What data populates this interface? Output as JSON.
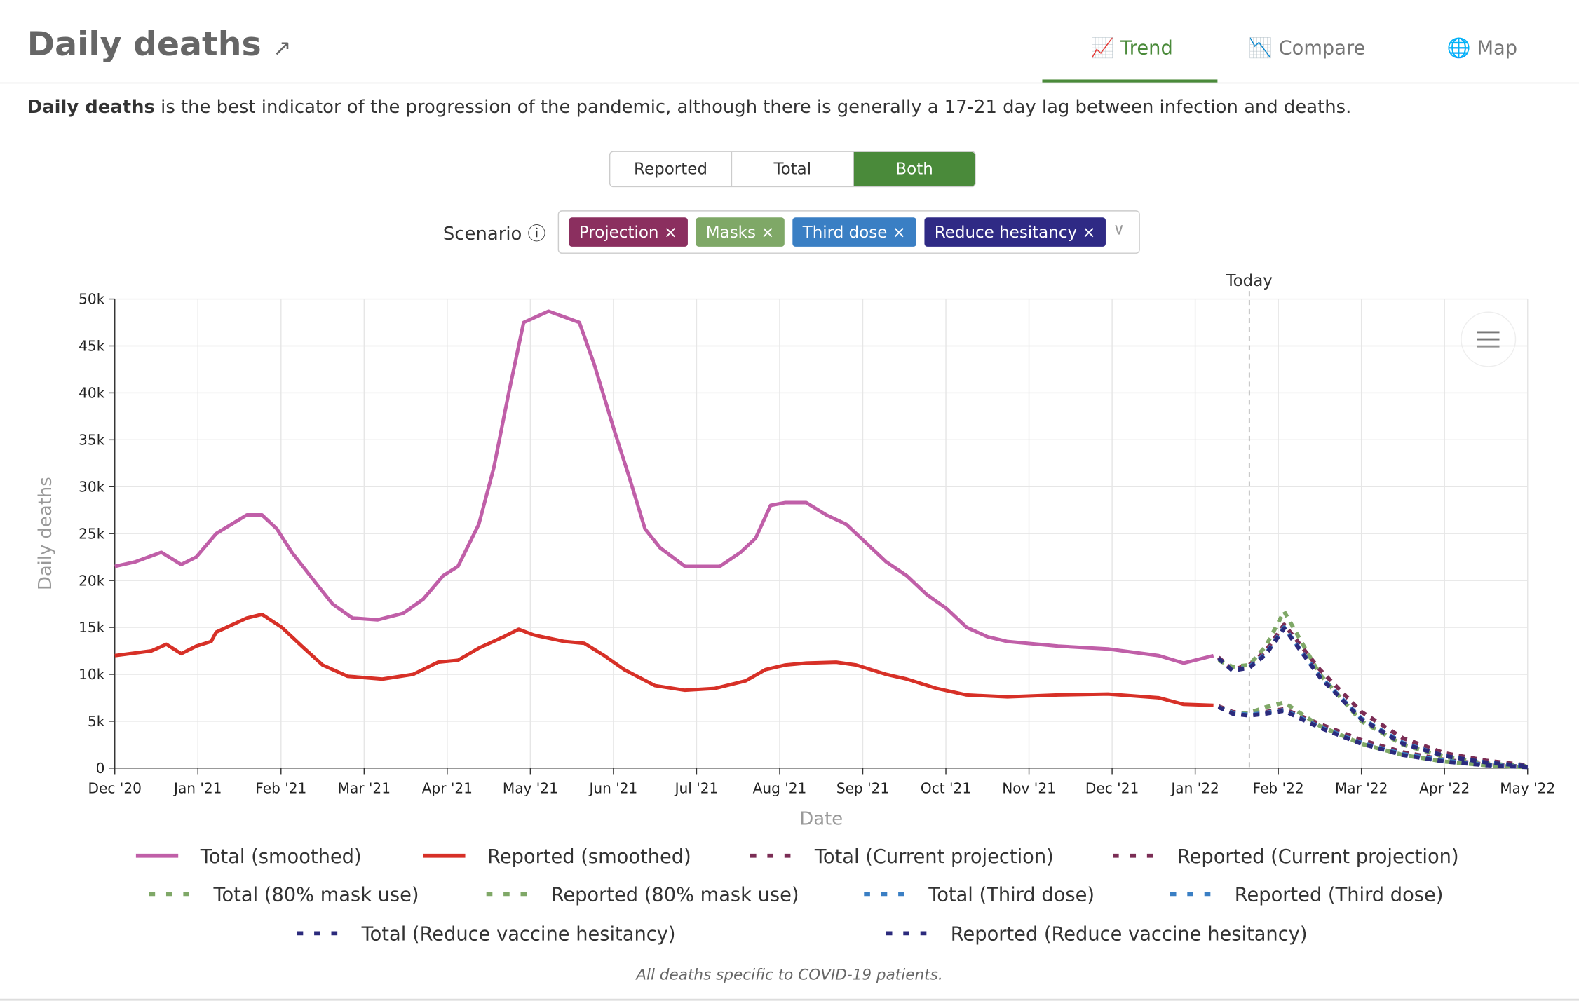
{
  "header": {
    "title": "Daily deaths",
    "tabs": [
      "Trend",
      "Compare",
      "Map"
    ]
  },
  "description": {
    "bold": "Daily deaths",
    "text": "is the best indicator of the progression of the pandemic, although there is generally a 17-21 day lag between infection and deaths."
  },
  "toggle": [
    "Reported",
    "Total",
    "Both"
  ],
  "scenario": {
    "label": "Scenario",
    "chips": [
      {
        "text": "Projection",
        "color": "#8b2f5f"
      },
      {
        "text": "Masks",
        "color": "#7fa867"
      },
      {
        "text": "Third dose",
        "color": "#3a7fc4"
      },
      {
        "text": "Reduce hesitancy",
        "color": "#2f2a85"
      }
    ]
  },
  "footnote": "All deaths specific to COVID-19 patients.",
  "chart_data": {
    "type": "line",
    "x_label": "Date",
    "y_label": "Daily deaths",
    "annotation": {
      "text": "Today",
      "x": 13.65
    },
    "xlim": [
      0,
      17
    ],
    "xticks": [
      {
        "value": 0,
        "label": "Dec '20"
      },
      {
        "value": 1,
        "label": "Jan '21"
      },
      {
        "value": 2,
        "label": "Feb '21"
      },
      {
        "value": 3,
        "label": "Mar '21"
      },
      {
        "value": 4,
        "label": "Apr '21"
      },
      {
        "value": 5,
        "label": "May '21"
      },
      {
        "value": 6,
        "label": "Jun '21"
      },
      {
        "value": 7,
        "label": "Jul '21"
      },
      {
        "value": 8,
        "label": "Aug '21"
      },
      {
        "value": 9,
        "label": "Sep '21"
      },
      {
        "value": 10,
        "label": "Oct '21"
      },
      {
        "value": 11,
        "label": "Nov '21"
      },
      {
        "value": 12,
        "label": "Dec '21"
      },
      {
        "value": 13,
        "label": "Jan '22"
      },
      {
        "value": 14,
        "label": "Feb '22"
      },
      {
        "value": 15,
        "label": "Mar '22"
      },
      {
        "value": 16,
        "label": "Apr '22"
      },
      {
        "value": 17,
        "label": "May '22"
      }
    ],
    "ylim": [
      0,
      50000
    ],
    "yticks": [
      0,
      {
        "value": 5000,
        "label": "5k"
      },
      {
        "value": 10000,
        "label": "10k"
      },
      {
        "value": 15000,
        "label": "15k"
      },
      {
        "value": 20000,
        "label": "20k"
      },
      {
        "value": 25000,
        "label": "25k"
      },
      {
        "value": 30000,
        "label": "30k"
      },
      {
        "value": 35000,
        "label": "35k"
      },
      {
        "value": 40000,
        "label": "40k"
      },
      {
        "value": 45000,
        "label": "45k"
      },
      {
        "value": 50000,
        "label": "50k"
      }
    ],
    "grid": true,
    "series": [
      {
        "name": "Total (smoothed)",
        "color": "#c05fa8",
        "dashed": false,
        "x": [
          0,
          0.25,
          0.56,
          0.8,
          0.98,
          1.22,
          1.59,
          1.77,
          1.95,
          2.13,
          2.44,
          2.62,
          2.86,
          3.16,
          3.47,
          3.71,
          3.95,
          4.13,
          4.38,
          4.56,
          4.74,
          4.92,
          5.22,
          5.59,
          5.77,
          6.01,
          6.19,
          6.38,
          6.56,
          6.86,
          7.28,
          7.53,
          7.71,
          7.89,
          8.07,
          8.32,
          8.56,
          8.8,
          9.04,
          9.28,
          9.53,
          9.77,
          10.01,
          10.25,
          10.5,
          10.74,
          11.35,
          11.95,
          12.56,
          12.86,
          13.22
        ],
        "values": [
          21500,
          22000,
          23000,
          21700,
          22500,
          25000,
          27000,
          27000,
          25500,
          23000,
          19500,
          17500,
          16000,
          15800,
          16500,
          18000,
          20500,
          21500,
          26000,
          32000,
          40000,
          47500,
          48700,
          47500,
          43000,
          36000,
          31000,
          25500,
          23500,
          21500,
          21500,
          23000,
          24500,
          28000,
          28300,
          28300,
          27000,
          26000,
          24000,
          22000,
          20500,
          18500,
          17000,
          15000,
          14000,
          13500,
          13000,
          12700,
          12000,
          11200,
          12000
        ]
      },
      {
        "name": "Reported (smoothed)",
        "color": "#d73027",
        "dashed": false,
        "x": [
          0,
          0.44,
          0.62,
          0.8,
          0.98,
          1.16,
          1.22,
          1.59,
          1.77,
          2.01,
          2.25,
          2.5,
          2.8,
          3.22,
          3.59,
          3.89,
          4.13,
          4.38,
          4.68,
          4.86,
          5.04,
          5.41,
          5.65,
          5.89,
          6.13,
          6.5,
          6.86,
          7.22,
          7.59,
          7.83,
          8.07,
          8.32,
          8.68,
          8.92,
          9.28,
          9.53,
          9.89,
          10.25,
          10.74,
          11.35,
          11.95,
          12.56,
          12.86,
          13.22
        ],
        "values": [
          12000,
          12500,
          13200,
          12200,
          13000,
          13500,
          14500,
          16000,
          16400,
          15000,
          13000,
          11000,
          9800,
          9500,
          10000,
          11300,
          11500,
          12800,
          14000,
          14800,
          14200,
          13500,
          13300,
          12000,
          10500,
          8800,
          8300,
          8500,
          9300,
          10500,
          11000,
          11200,
          11300,
          11000,
          10000,
          9500,
          8500,
          7800,
          7600,
          7800,
          7900,
          7500,
          6800,
          6700
        ]
      },
      {
        "name": "Total (Current projection)",
        "color": "#7b2d55",
        "dashed": true,
        "x": [
          13.28,
          13.45,
          13.65,
          13.85,
          14.07,
          14.5,
          15,
          15.5,
          16,
          16.5,
          17
        ],
        "values": [
          11800,
          10500,
          11000,
          12500,
          15300,
          10500,
          6000,
          3200,
          1600,
          800,
          300
        ]
      },
      {
        "name": "Reported (Current projection)",
        "color": "#7b2d55",
        "dashed": true,
        "x": [
          13.28,
          13.45,
          13.65,
          13.85,
          14.07,
          14.5,
          15,
          15.5,
          16,
          16.5,
          17
        ],
        "values": [
          6600,
          6000,
          5800,
          6000,
          6300,
          4700,
          3000,
          1700,
          900,
          400,
          150
        ]
      },
      {
        "name": "Total (80% mask use)",
        "color": "#7fa867",
        "dashed": true,
        "x": [
          13.28,
          13.45,
          13.65,
          13.85,
          14.07,
          14.5,
          15,
          15.5,
          16,
          16.5,
          17
        ],
        "values": [
          11500,
          10800,
          11000,
          13000,
          16700,
          10000,
          5000,
          2500,
          1200,
          500,
          200
        ]
      },
      {
        "name": "Reported (80% mask use)",
        "color": "#7fa867",
        "dashed": true,
        "x": [
          13.28,
          13.45,
          13.65,
          13.85,
          14.07,
          14.5,
          15,
          15.5,
          16,
          16.5,
          17
        ],
        "values": [
          6500,
          5900,
          5900,
          6500,
          7000,
          4500,
          2600,
          1400,
          700,
          300,
          100
        ]
      },
      {
        "name": "Total (Third dose)",
        "color": "#3a7fc4",
        "dashed": true,
        "x": [
          13.28,
          13.45,
          13.65,
          13.85,
          14.07,
          14.5,
          15,
          15.5,
          16,
          16.5,
          17
        ],
        "values": [
          11700,
          10400,
          10800,
          12200,
          15000,
          9800,
          5300,
          2700,
          1300,
          600,
          200
        ]
      },
      {
        "name": "Reported (Third dose)",
        "color": "#3a7fc4",
        "dashed": true,
        "x": [
          13.28,
          13.45,
          13.65,
          13.85,
          14.07,
          14.5,
          15,
          15.5,
          16,
          16.5,
          17
        ],
        "values": [
          6500,
          5900,
          5700,
          5900,
          6200,
          4400,
          2700,
          1500,
          800,
          350,
          120
        ]
      },
      {
        "name": "Total (Reduce vaccine hesitancy)",
        "color": "#2b2a7c",
        "dashed": true,
        "x": [
          13.28,
          13.45,
          13.65,
          13.85,
          14.07,
          14.5,
          15,
          15.5,
          16,
          16.5,
          17
        ],
        "values": [
          11700,
          10400,
          10700,
          12100,
          14900,
          9700,
          5200,
          2600,
          1300,
          600,
          200
        ]
      },
      {
        "name": "Reported (Reduce vaccine hesitancy)",
        "color": "#2b2a7c",
        "dashed": true,
        "x": [
          13.28,
          13.45,
          13.65,
          13.85,
          14.07,
          14.5,
          15,
          15.5,
          16,
          16.5,
          17
        ],
        "values": [
          6500,
          5800,
          5600,
          5800,
          6100,
          4300,
          2600,
          1400,
          700,
          300,
          100
        ]
      }
    ]
  }
}
